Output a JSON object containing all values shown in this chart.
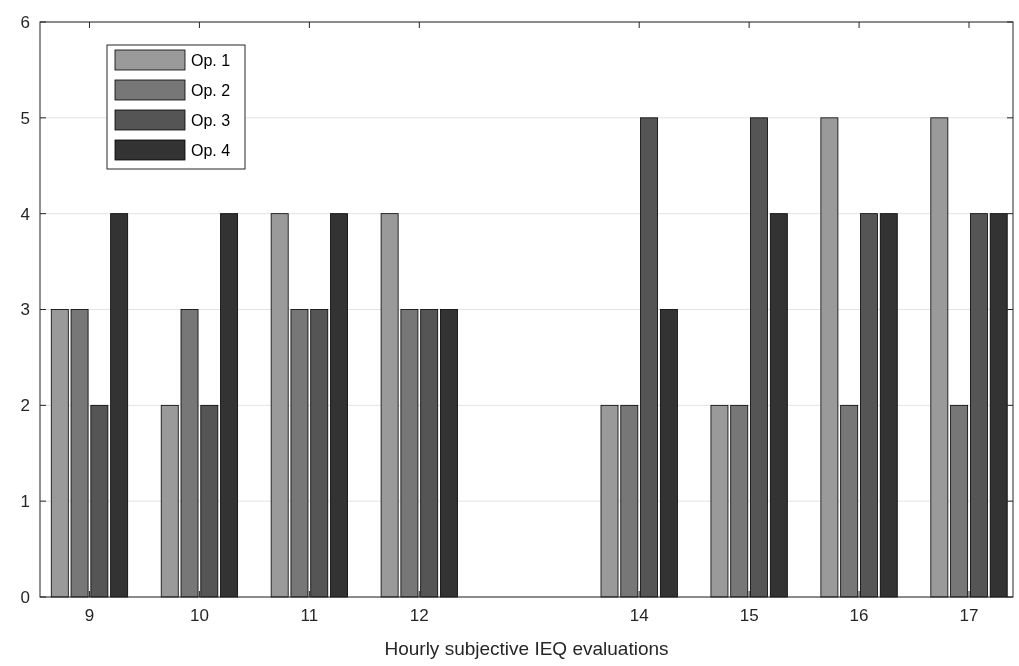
{
  "chart_data": {
    "type": "bar",
    "xlabel": "Hourly subjective IEQ evaluations",
    "x": [
      9,
      10,
      11,
      12,
      14,
      15,
      16,
      17
    ],
    "xlim": [
      8.55,
      17.4
    ],
    "xticks": [
      9,
      10,
      11,
      12,
      14,
      15,
      16,
      17
    ],
    "ylim": [
      0,
      6
    ],
    "yticks": [
      0,
      1,
      2,
      3,
      4,
      5,
      6
    ],
    "grid": "y",
    "legend": "top left",
    "series": [
      {
        "name": "Op. 1",
        "color": "#9a9a9a",
        "values": [
          3,
          2,
          4,
          4,
          2,
          2,
          5,
          5
        ]
      },
      {
        "name": "Op. 2",
        "color": "#777777",
        "values": [
          3,
          3,
          3,
          3,
          2,
          2,
          2,
          2
        ]
      },
      {
        "name": "Op. 3",
        "color": "#555555",
        "values": [
          2,
          2,
          3,
          3,
          5,
          5,
          4,
          4
        ]
      },
      {
        "name": "Op. 4",
        "color": "#333333",
        "values": [
          4,
          4,
          4,
          3,
          3,
          4,
          4,
          4
        ]
      }
    ]
  }
}
